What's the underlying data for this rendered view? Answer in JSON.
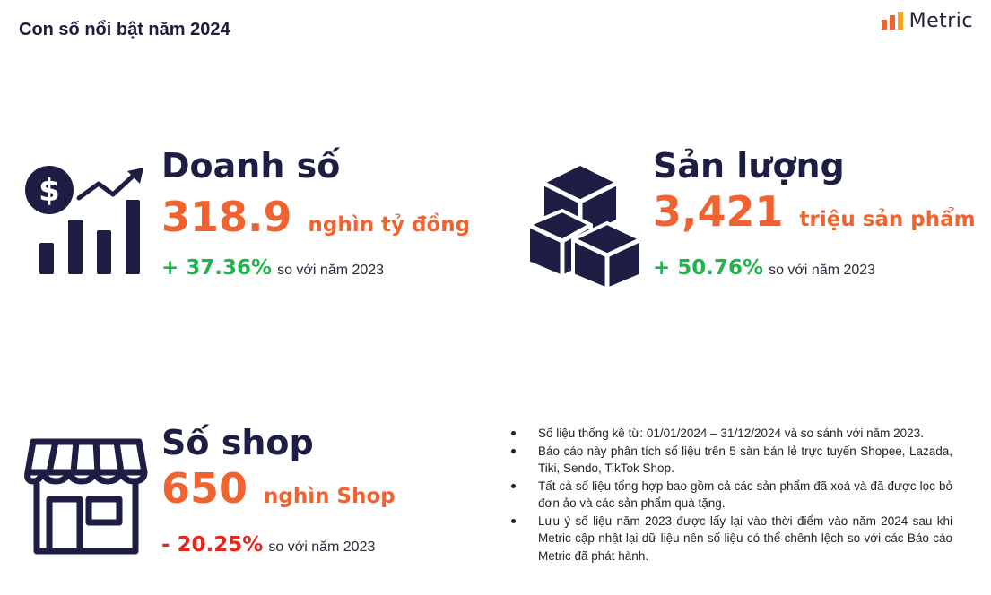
{
  "header": {
    "title": "Con số nổi bật năm 2024",
    "logo_text": "Metric"
  },
  "stats": {
    "revenue": {
      "label": "Doanh số",
      "value": "318.9",
      "unit": "nghìn tỷ đồng",
      "change": "+ 37.36%",
      "compare": "so với năm 2023",
      "icon": "revenue-growth-chart-icon"
    },
    "volume": {
      "label": "Sản lượng",
      "value": "3,421",
      "unit": "triệu sản phẩm",
      "change": "+ 50.76%",
      "compare": "so với năm 2023",
      "icon": "boxes-icon"
    },
    "shops": {
      "label": "Số shop",
      "value": "650",
      "unit": "nghìn Shop",
      "change": "- 20.25%",
      "compare": "so với năm 2023",
      "icon": "storefront-icon"
    }
  },
  "notes": [
    "Số liệu thống kê từ: 01/01/2024 – 31/12/2024 và so sánh với năm 2023.",
    "Báo cáo này phân tích số liệu trên 5 sàn bán lẻ trực tuyến Shopee, Lazada, Tiki,  Sendo, TikTok Shop.",
    "Tất cả số liệu tổng hợp bao gồm cả các sản phẩm đã xoá và đã được lọc bỏ đơn ảo và các sản phẩm quà tặng.",
    "Lưu ý số liệu năm 2023 được lấy lại vào thời điểm vào năm 2024 sau khi Metric cập nhật lại dữ liệu nên số liệu có thể chênh lệch so với các Báo cáo Metric đã phát hành."
  ],
  "colors": {
    "navy": "#1e1e45",
    "accent_orange": "#f0622f",
    "positive_green": "#1fb54c",
    "negative_red": "#e8261c"
  }
}
